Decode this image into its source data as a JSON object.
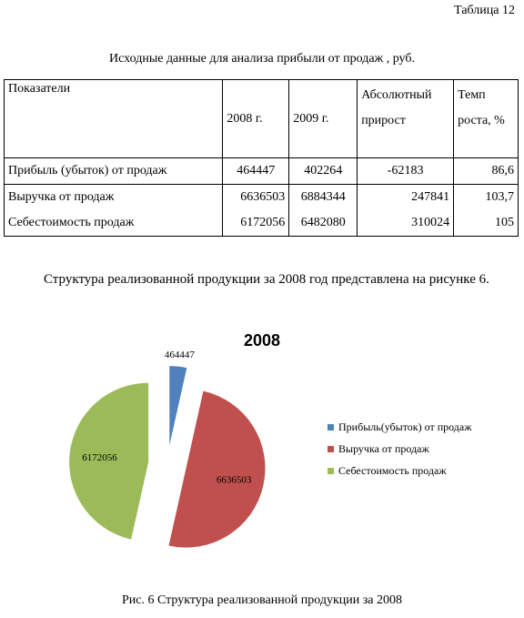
{
  "table_number": "Таблица 12",
  "table_title": "Исходные данные для анализа прибыли от  продаж , руб.",
  "table": {
    "headers": [
      "Показатели",
      "2008 г.",
      "2009 г.",
      "Абсолютный прирост",
      "Темп роста, %"
    ],
    "rows": [
      [
        "Прибыль (убыток) от продаж",
        "464447",
        "402264",
        "-62183",
        "86,6"
      ],
      [
        "Выручка от продаж",
        "6636503",
        "6884344",
        "247841",
        "103,7"
      ],
      [
        "Себестоимость продаж",
        "6172056",
        "6482080",
        "310024",
        "105"
      ]
    ]
  },
  "paragraph": "Структура реализованной продукции за 2008 год представлена на рисунке 6.",
  "chart_data": {
    "type": "pie",
    "title": "2008",
    "categories": [
      "Прибыль(убыток) от продаж",
      "Выручка от продаж",
      "Себестоимость продаж"
    ],
    "values": [
      464447,
      6636503,
      6172056
    ],
    "data_labels": [
      "464447",
      "6636503",
      "6172056"
    ],
    "colors": [
      "#4f81bd",
      "#c0504d",
      "#9bbb59"
    ],
    "legend_position": "right",
    "exploded": true
  },
  "caption": "Рис. 6 Структура реализованной продукции за 2008"
}
